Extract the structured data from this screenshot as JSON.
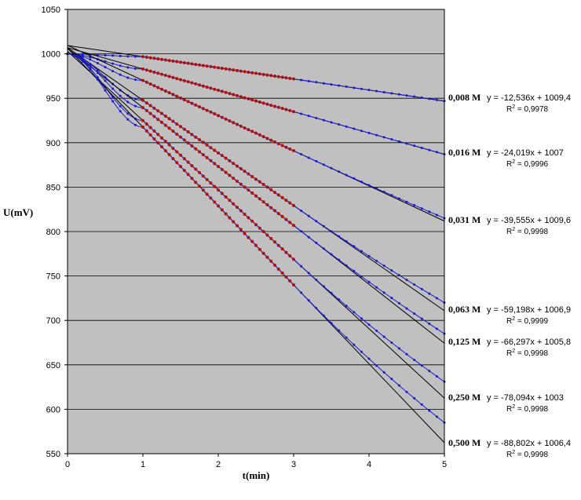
{
  "chart_data": {
    "type": "line",
    "xlabel": "t(min)",
    "ylabel": "U(mV)",
    "xlim": [
      0,
      5
    ],
    "ylim": [
      550,
      1050
    ],
    "xticks": [
      "0",
      "1",
      "2",
      "3",
      "4",
      "5"
    ],
    "yticks": [
      "550",
      "600",
      "650",
      "700",
      "750",
      "800",
      "850",
      "900",
      "950",
      "1000",
      "1050"
    ],
    "grid": "horizontal",
    "plot_background": "#c0c0c0",
    "colors": {
      "measured": "#1a1acc",
      "fit_points": "#b01010",
      "fit_line": "#000000"
    },
    "fit_range": [
      1,
      3
    ],
    "series": [
      {
        "name": "0,008 M",
        "slope": -12.536,
        "intercept": 1009.4,
        "equation": "y = -12,536x + 1009,4",
        "r2_label": "R",
        "r2_value": " = 0,9978",
        "measured_end": 947
      },
      {
        "name": "0,016 M",
        "slope": -24.019,
        "intercept": 1007,
        "equation": "y = -24,019x + 1007",
        "r2_label": "R",
        "r2_value": " = 0,9996",
        "measured_end": 887
      },
      {
        "name": "0,031 M",
        "slope": -39.555,
        "intercept": 1009.6,
        "equation": "y = -39,555x + 1009,6",
        "r2_label": "R",
        "r2_value": " = 0,9998",
        "measured_end": 815
      },
      {
        "name": "0,063 M",
        "slope": -59.198,
        "intercept": 1006.9,
        "equation": "y = -59,198x + 1006,9",
        "r2_label": "R",
        "r2_value": " = 0,9999",
        "measured_end": 720
      },
      {
        "name": "0,125 M",
        "slope": -66.297,
        "intercept": 1005.8,
        "equation": "y = -66,297x + 1005,8",
        "r2_label": "R",
        "r2_value": " = 0,9998",
        "measured_end": 685
      },
      {
        "name": "0,250 M",
        "slope": -78.094,
        "intercept": 1003,
        "equation": "y = -78,094x + 1003",
        "r2_label": "R",
        "r2_value": " = 0,9998",
        "measured_end": 631
      },
      {
        "name": "0,500 M",
        "slope": -88.802,
        "intercept": 1006.4,
        "equation": "y = -88,802x + 1006,4",
        "r2_label": "R",
        "r2_value": " = 0,9998",
        "measured_end": 585
      }
    ]
  }
}
